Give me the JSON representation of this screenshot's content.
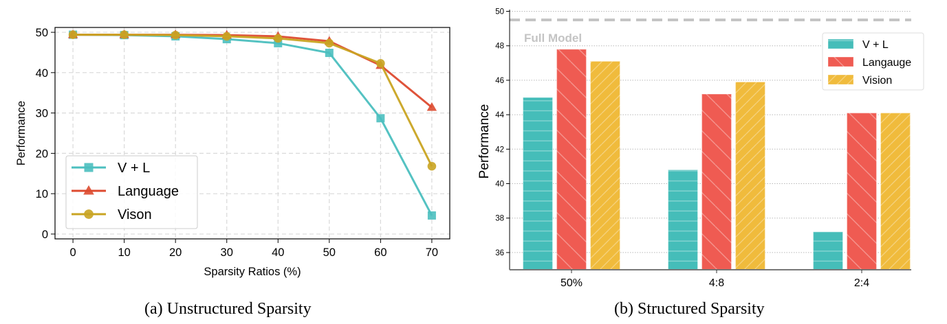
{
  "chart_data": [
    {
      "type": "line",
      "title": "",
      "caption": "(a) Unstructured Sparsity",
      "xlabel": "Sparsity Ratios (%)",
      "ylabel": "Performance",
      "x": [
        0,
        10,
        20,
        30,
        40,
        50,
        60,
        70
      ],
      "xticks": [
        "0",
        "10",
        "20",
        "30",
        "40",
        "50",
        "60",
        "70"
      ],
      "yticks": [
        "0",
        "10",
        "20",
        "30",
        "40",
        "50"
      ],
      "xlim": [
        -3.5,
        73.5
      ],
      "ylim": [
        -1.2,
        51.2
      ],
      "grid": true,
      "legend_position": "lower-left",
      "series": [
        {
          "name": "V + L",
          "marker": "square",
          "color": "#4bbfbf",
          "values": [
            49.4,
            49.3,
            49.0,
            48.3,
            47.3,
            44.9,
            28.7,
            4.6
          ]
        },
        {
          "name": "Language",
          "marker": "triangle",
          "color": "#dd4a2f",
          "values": [
            49.4,
            49.4,
            49.4,
            49.3,
            49.0,
            47.8,
            41.8,
            31.4
          ]
        },
        {
          "name": "Vison",
          "marker": "circle",
          "color": "#c9a422",
          "values": [
            49.4,
            49.4,
            49.3,
            49.0,
            48.5,
            47.3,
            42.3,
            16.8
          ]
        }
      ]
    },
    {
      "type": "bar",
      "title": "",
      "caption": "(b) Structured Sparsity",
      "xlabel": "",
      "ylabel": "Performance",
      "categories": [
        "50%",
        "4:8",
        "2:4"
      ],
      "yticks": [
        "36",
        "38",
        "40",
        "42",
        "44",
        "46",
        "48",
        "50"
      ],
      "ylim": [
        35,
        50.1
      ],
      "grid": true,
      "legend_position": "top-right",
      "reference_line": {
        "label": "Full Model",
        "value": 49.5,
        "color": "#c4c4c4"
      },
      "series": [
        {
          "name": "V + L",
          "hatch": "horizontal",
          "color": "#45bdb9",
          "values": [
            45.0,
            40.8,
            37.2
          ]
        },
        {
          "name": "Langauge",
          "hatch": "backslash",
          "color": "#ef5b52",
          "values": [
            47.8,
            45.2,
            44.1
          ]
        },
        {
          "name": "Vision",
          "hatch": "slash",
          "color": "#f0bb3c",
          "values": [
            47.1,
            45.9,
            44.1
          ]
        }
      ]
    }
  ]
}
